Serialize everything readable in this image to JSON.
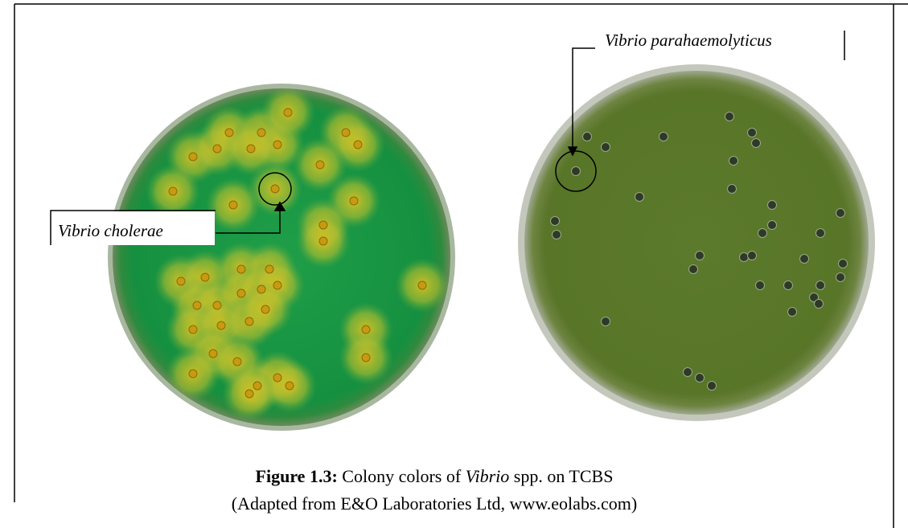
{
  "figure": {
    "labels": {
      "left": "Vibrio cholerae",
      "right": "Vibrio parahaemolyticus"
    },
    "caption": {
      "number": "Figure 1.3:",
      "text_before": "Colony colors of",
      "italic": "Vibrio",
      "text_after": "spp. on TCBS",
      "source": "(Adapted from E&O Laboratories Ltd, www.eolabs.com)"
    }
  }
}
